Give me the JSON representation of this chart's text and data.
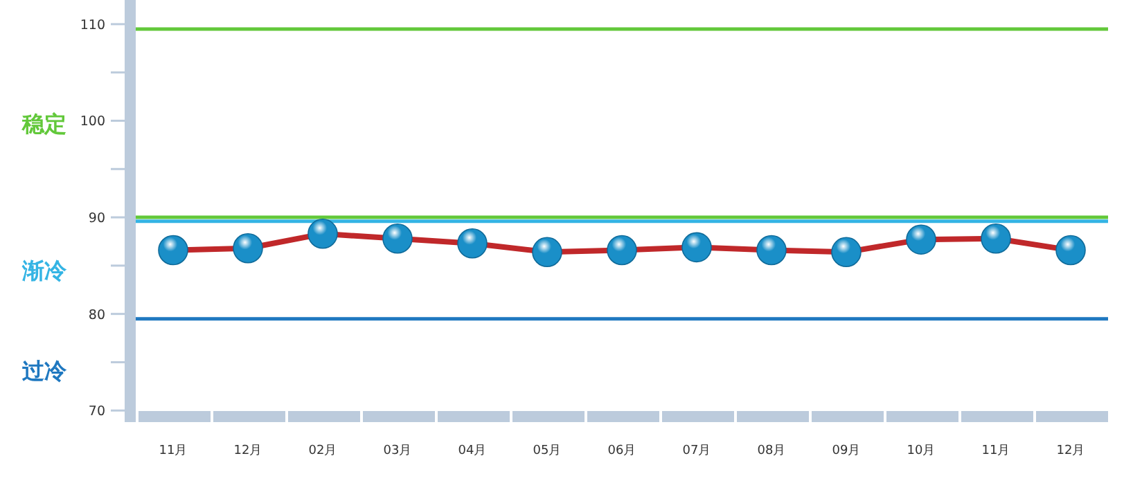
{
  "chart_data": {
    "type": "line",
    "categories": [
      "11月",
      "12月",
      "02月",
      "03月",
      "04月",
      "05月",
      "06月",
      "07月",
      "08月",
      "09月",
      "10月",
      "11月",
      "12月"
    ],
    "series": [
      {
        "color": "#c0282a",
        "colors": [
          "#1a8fc8",
          "#1a8fc8",
          "#1a8fc8",
          "#1a8fc8",
          "#1a8fc8",
          "#1a8fc8",
          "#1a8fc8",
          "#1a8fc8",
          "#1a8fc8",
          "#1a8fc8",
          "#1a8fc8",
          "#1a8fc8",
          "#1a8fc8"
        ],
        "values": [
          86.6,
          86.8,
          88.3,
          87.8,
          87.3,
          86.4,
          86.6,
          86.9,
          86.6,
          86.4,
          87.7,
          87.8,
          86.6
        ]
      }
    ],
    "marker": "circle",
    "ylim": [
      68.8,
      112.5
    ],
    "yticks": [
      70,
      {
        "value": 75,
        "label": null
      },
      80,
      {
        "value": 85,
        "label": null
      },
      90,
      {
        "value": 95,
        "label": null
      },
      100,
      {
        "value": 105,
        "label": null
      },
      110
    ],
    "ref_lines": [
      {
        "axis": "y",
        "value": 109.5,
        "color": "#62c83a",
        "label": "稳定"
      },
      {
        "axis": "y",
        "value": 90,
        "color": "#62c83a"
      },
      {
        "axis": "y",
        "value": 89.6,
        "color": "#34b4e4",
        "label": "渐冷"
      },
      {
        "axis": "y",
        "value": 79.5,
        "color": "#1f78c0",
        "label": "过冷"
      }
    ],
    "grid": false
  }
}
